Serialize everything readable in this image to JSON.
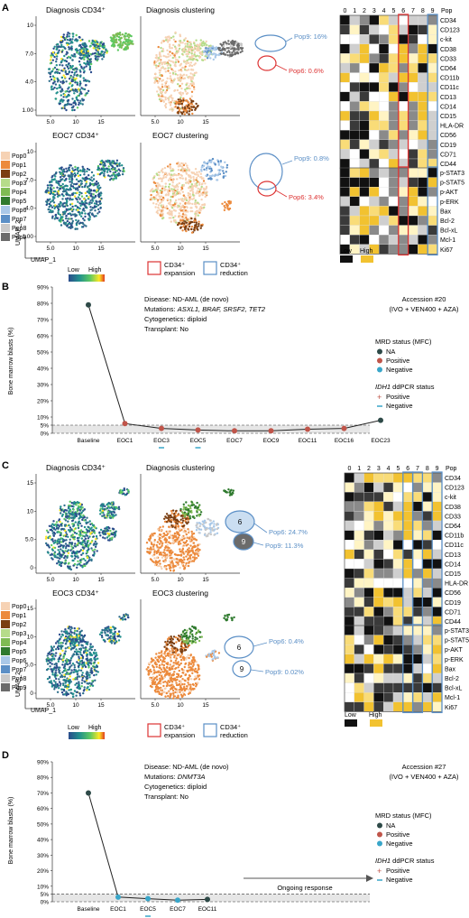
{
  "panelA": {
    "letter": "A",
    "umap_titles": [
      "Diagnosis CD34⁺",
      "Diagnosis clustering",
      "EOC7 CD34⁺",
      "EOC7 clustering"
    ],
    "pops": [
      "Pop0",
      "Pop1",
      "Pop2",
      "Pop3",
      "Pop4",
      "Pop5",
      "Pop6",
      "Pop7",
      "Pop8",
      "Pop9"
    ],
    "pop_colors": [
      "#f6d2b4",
      "#ec8a3c",
      "#7a3e12",
      "#b6dc8a",
      "#7fbb54",
      "#2f7a2e",
      "#a9c8e8",
      "#5b8fc6",
      "#c9c9c9",
      "#6b6b6b"
    ],
    "x_ticks": [
      "5.0",
      "10",
      "15"
    ],
    "y_ticks": [
      "10",
      "7.0",
      "4.0",
      "1.00"
    ],
    "ylabel": "UMAP_2",
    "xlabel": "UMAP_1",
    "low": "Low",
    "high": "High",
    "expansion": "CD34⁺\nexpansion",
    "reduction": "CD34⁺\nreduction",
    "annot_diag": [
      "Pop9: 16%",
      "Pop6: 0.6%"
    ],
    "annot_eoc7": [
      "Pop9: 0.8%",
      "Pop6: 3.4%"
    ],
    "heat_cols": [
      "0",
      "1",
      "2",
      "3",
      "4",
      "5",
      "6",
      "7",
      "8",
      "9"
    ],
    "pop_label": "Pop",
    "heat_rows1": [
      "CD34",
      "CD123",
      "c-kit",
      "CD38",
      "CD33",
      "CD64",
      "CD11b",
      "CD11c",
      "CD13",
      "CD14",
      "CD15",
      "HLA-DR",
      "CD56",
      "CD19",
      "CD71",
      "CD44"
    ],
    "heat_rows2": [
      "p-STAT3",
      "p-STAT5",
      "p-AKT",
      "p-ERK",
      "Bax",
      "Bcl-2",
      "Bcl-xL",
      "Mcl-1",
      "Ki67"
    ],
    "heat_low": "Low",
    "heat_high": "High"
  },
  "panelB": {
    "letter": "B",
    "ylabel": "Bone marrow blasts (%)",
    "info": [
      "Disease: ND-AML (de novo)",
      "Mutations: ASXL1, BRAF, SRSF2, TET2",
      "Cytogenetics: diploid",
      "Transplant: No"
    ],
    "accession": "Accession #20",
    "regimen": "(IVO + VEN400 + AZA)",
    "mrd_title": "MRD status (MFC)",
    "mrd_items": [
      "NA",
      "Positive",
      "Negative"
    ],
    "idh_title": "IDH1 ddPCR status",
    "idh_items": [
      "Positive",
      "Negative"
    ],
    "chart_data": {
      "type": "line",
      "ylabel": "Bone marrow blasts (%)",
      "categories": [
        "Baseline",
        "EOC1",
        "EOC3",
        "EOC5",
        "EOC7",
        "EOC9",
        "EOC11",
        "EOC16",
        "EOC23"
      ],
      "values": [
        79,
        6,
        3,
        2,
        1.5,
        1.5,
        2.5,
        3,
        8
      ],
      "status": [
        "NA",
        "Positive",
        "Positive",
        "Positive",
        "Positive",
        "Positive",
        "Positive",
        "Positive",
        "NA"
      ],
      "y_ticks": [
        "0%",
        "5%",
        "10%",
        "20%",
        "30%",
        "40%",
        "50%",
        "60%",
        "70%",
        "80%",
        "90%"
      ],
      "ylim": [
        0,
        90
      ],
      "reference_lines": [
        0,
        5
      ],
      "idh_negative_at": [
        "EOC3",
        "EOC5"
      ]
    }
  },
  "panelC": {
    "letter": "C",
    "umap_titles": [
      "Diagnosis CD34⁺",
      "Diagnosis clustering",
      "EOC3 CD34⁺",
      "EOC3 clustering"
    ],
    "annot_diag": [
      "Pop6: 24.7%",
      "Pop9: 11.3%"
    ],
    "annot_eoc3": [
      "Pop6: 0.4%",
      "Pop9: 0.02%"
    ],
    "circle_labels": [
      "6",
      "9",
      "6",
      "9"
    ]
  },
  "panelD": {
    "letter": "D",
    "ylabel": "Bone marrow blasts (%)",
    "info": [
      "Disease: ND-AML (de novo)",
      "Mutations: DNMT3A",
      "Cytogenetics: diploid",
      "Transplant: No"
    ],
    "accession": "Accession #27",
    "regimen": "(IVO + VEN400 + AZA)",
    "ongoing": "Ongoing response",
    "chart_data": {
      "type": "line",
      "ylabel": "Bone marrow blasts (%)",
      "categories": [
        "Baseline",
        "EOC1",
        "EOC5",
        "EOC7",
        "EOC11"
      ],
      "values": [
        70,
        3,
        2,
        1,
        1.5
      ],
      "status": [
        "NA",
        "Negative",
        "Negative",
        "Negative",
        "NA"
      ],
      "y_ticks": [
        "0%",
        "5%",
        "10%",
        "20%",
        "30%",
        "40%",
        "50%",
        "60%",
        "70%",
        "80%",
        "90%"
      ],
      "ylim": [
        0,
        90
      ],
      "reference_lines": [
        0,
        5
      ],
      "idh_negative_at": [
        "EOC5"
      ]
    }
  }
}
